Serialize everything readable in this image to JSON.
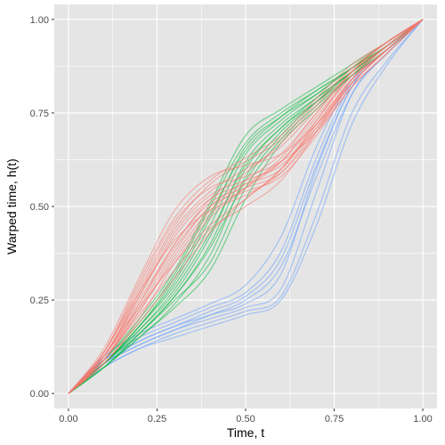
{
  "chart_data": {
    "type": "line",
    "title": "",
    "xlabel": "Time, t",
    "ylabel": "Warped time, h(t)",
    "xlim": [
      -0.04,
      1.04
    ],
    "ylim": [
      -0.04,
      1.04
    ],
    "x_ticks": [
      0.0,
      0.25,
      0.5,
      0.75,
      1.0
    ],
    "x_tick_labels": [
      "0.00",
      "0.25",
      "0.50",
      "0.75",
      "1.00"
    ],
    "y_ticks": [
      0.0,
      0.25,
      0.5,
      0.75,
      1.0
    ],
    "y_tick_labels": [
      "0.00",
      "0.25",
      "0.50",
      "0.75",
      "1.00"
    ],
    "grid": true,
    "legend": "none",
    "background_color": "#E5E5E5",
    "grid_color": "#FFFFFF",
    "x": [
      0,
      0.1,
      0.2,
      0.3,
      0.4,
      0.5,
      0.6,
      0.7,
      0.8,
      0.9,
      1.0
    ],
    "series": [
      {
        "color": "#F8766D",
        "group": "red",
        "curves": [
          [
            0,
            0.1,
            0.26,
            0.42,
            0.52,
            0.56,
            0.6,
            0.72,
            0.84,
            0.92,
            1.0
          ],
          [
            0,
            0.09,
            0.22,
            0.36,
            0.48,
            0.55,
            0.62,
            0.74,
            0.85,
            0.93,
            1.0
          ],
          [
            0,
            0.11,
            0.29,
            0.46,
            0.55,
            0.58,
            0.62,
            0.7,
            0.82,
            0.91,
            1.0
          ],
          [
            0,
            0.08,
            0.19,
            0.31,
            0.43,
            0.52,
            0.6,
            0.73,
            0.86,
            0.94,
            1.0
          ],
          [
            0,
            0.1,
            0.24,
            0.39,
            0.5,
            0.57,
            0.64,
            0.75,
            0.86,
            0.93,
            1.0
          ],
          [
            0,
            0.12,
            0.31,
            0.49,
            0.58,
            0.61,
            0.64,
            0.72,
            0.83,
            0.92,
            1.0
          ],
          [
            0,
            0.09,
            0.21,
            0.33,
            0.44,
            0.5,
            0.57,
            0.7,
            0.84,
            0.93,
            1.0
          ],
          [
            0,
            0.1,
            0.27,
            0.44,
            0.54,
            0.6,
            0.66,
            0.76,
            0.86,
            0.93,
            1.0
          ],
          [
            0,
            0.09,
            0.23,
            0.38,
            0.5,
            0.54,
            0.58,
            0.69,
            0.82,
            0.91,
            1.0
          ],
          [
            0,
            0.11,
            0.27,
            0.41,
            0.49,
            0.53,
            0.59,
            0.71,
            0.84,
            0.92,
            1.0
          ],
          [
            0,
            0.1,
            0.25,
            0.4,
            0.52,
            0.59,
            0.67,
            0.77,
            0.87,
            0.94,
            1.0
          ],
          [
            0,
            0.08,
            0.2,
            0.35,
            0.47,
            0.55,
            0.63,
            0.75,
            0.86,
            0.94,
            1.0
          ],
          [
            0,
            0.1,
            0.26,
            0.43,
            0.53,
            0.57,
            0.61,
            0.71,
            0.83,
            0.92,
            1.0
          ],
          [
            0,
            0.09,
            0.22,
            0.37,
            0.49,
            0.56,
            0.62,
            0.73,
            0.85,
            0.93,
            1.0
          ],
          [
            0,
            0.11,
            0.28,
            0.45,
            0.56,
            0.62,
            0.68,
            0.78,
            0.87,
            0.94,
            1.0
          ],
          [
            0,
            0.1,
            0.23,
            0.35,
            0.45,
            0.52,
            0.6,
            0.72,
            0.84,
            0.92,
            1.0
          ],
          [
            0,
            0.09,
            0.24,
            0.4,
            0.51,
            0.55,
            0.59,
            0.7,
            0.83,
            0.92,
            1.0
          ],
          [
            0,
            0.11,
            0.3,
            0.47,
            0.57,
            0.63,
            0.69,
            0.79,
            0.88,
            0.94,
            1.0
          ]
        ]
      },
      {
        "color": "#00BA38",
        "group": "green",
        "curves": [
          [
            0,
            0.08,
            0.17,
            0.27,
            0.42,
            0.62,
            0.72,
            0.79,
            0.86,
            0.93,
            1.0
          ],
          [
            0,
            0.07,
            0.15,
            0.24,
            0.37,
            0.58,
            0.7,
            0.78,
            0.86,
            0.93,
            1.0
          ],
          [
            0,
            0.08,
            0.18,
            0.3,
            0.47,
            0.66,
            0.74,
            0.8,
            0.87,
            0.93,
            1.0
          ],
          [
            0,
            0.07,
            0.16,
            0.26,
            0.4,
            0.6,
            0.71,
            0.78,
            0.85,
            0.92,
            1.0
          ],
          [
            0,
            0.09,
            0.19,
            0.32,
            0.5,
            0.67,
            0.75,
            0.81,
            0.87,
            0.94,
            1.0
          ],
          [
            0,
            0.08,
            0.16,
            0.25,
            0.35,
            0.55,
            0.68,
            0.77,
            0.85,
            0.93,
            1.0
          ],
          [
            0,
            0.08,
            0.18,
            0.29,
            0.45,
            0.64,
            0.73,
            0.8,
            0.87,
            0.93,
            1.0
          ],
          [
            0,
            0.07,
            0.15,
            0.23,
            0.33,
            0.52,
            0.67,
            0.76,
            0.85,
            0.92,
            1.0
          ],
          [
            0,
            0.09,
            0.2,
            0.33,
            0.51,
            0.69,
            0.76,
            0.82,
            0.88,
            0.94,
            1.0
          ],
          [
            0,
            0.08,
            0.17,
            0.28,
            0.43,
            0.61,
            0.71,
            0.79,
            0.86,
            0.93,
            1.0
          ],
          [
            0,
            0.07,
            0.16,
            0.26,
            0.39,
            0.57,
            0.69,
            0.78,
            0.86,
            0.93,
            1.0
          ],
          [
            0,
            0.08,
            0.18,
            0.31,
            0.48,
            0.65,
            0.74,
            0.81,
            0.87,
            0.94,
            1.0
          ]
        ]
      },
      {
        "color": "#619CFF",
        "group": "blue",
        "curves": [
          [
            0,
            0.08,
            0.13,
            0.17,
            0.2,
            0.23,
            0.28,
            0.54,
            0.8,
            0.91,
            1.0
          ],
          [
            0,
            0.09,
            0.14,
            0.18,
            0.21,
            0.24,
            0.32,
            0.6,
            0.82,
            0.92,
            1.0
          ],
          [
            0,
            0.07,
            0.12,
            0.16,
            0.19,
            0.22,
            0.26,
            0.48,
            0.75,
            0.89,
            1.0
          ],
          [
            0,
            0.09,
            0.15,
            0.19,
            0.23,
            0.27,
            0.38,
            0.63,
            0.83,
            0.92,
            1.0
          ],
          [
            0,
            0.08,
            0.13,
            0.17,
            0.21,
            0.25,
            0.34,
            0.58,
            0.8,
            0.91,
            1.0
          ],
          [
            0,
            0.07,
            0.12,
            0.15,
            0.18,
            0.21,
            0.25,
            0.45,
            0.72,
            0.88,
            1.0
          ],
          [
            0,
            0.1,
            0.16,
            0.2,
            0.24,
            0.29,
            0.42,
            0.66,
            0.84,
            0.93,
            1.0
          ],
          [
            0,
            0.08,
            0.14,
            0.18,
            0.22,
            0.26,
            0.36,
            0.61,
            0.82,
            0.92,
            1.0
          ]
        ]
      }
    ]
  }
}
